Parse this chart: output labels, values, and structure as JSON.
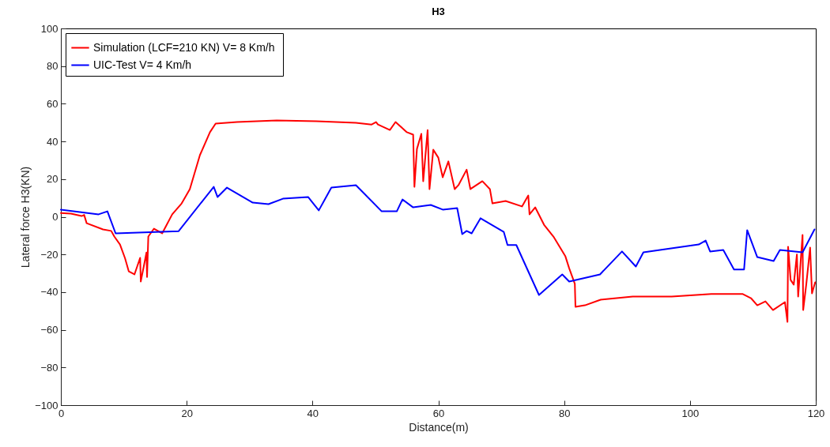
{
  "chart_data": {
    "type": "line",
    "title": "H3",
    "xlabel": "Distance(m)",
    "ylabel": "Lateral force H3(KN)",
    "xlim": [
      0,
      120
    ],
    "xticks": [
      0,
      20,
      40,
      60,
      80,
      100,
      120
    ],
    "ylim": [
      -100,
      100
    ],
    "yticks": [
      -100,
      -80,
      -60,
      -40,
      -20,
      0,
      20,
      40,
      60,
      80,
      100
    ],
    "grid": false,
    "legend": "top left",
    "line_style": "solid",
    "marker": "none",
    "series": [
      {
        "name": "Simulation (LCF=210 KN)  V= 8 Km/h",
        "color": "#ff0000",
        "x": [
          0,
          1.6,
          3.3,
          3.7,
          4.1,
          6.7,
          8,
          8.5,
          9.4,
          10.2,
          10.8,
          11.7,
          12.6,
          12.7,
          13.2,
          13.6,
          13.7,
          13.9,
          14.8,
          16.1,
          16.7,
          17.7,
          19.2,
          20.5,
          22.1,
          23.7,
          24.6,
          28,
          34.3,
          40.6,
          46.9,
          49.4,
          50.1,
          50.4,
          52.3,
          53.2,
          55,
          56,
          56.2,
          56.6,
          57.3,
          57.6,
          58.3,
          58.6,
          59.2,
          60,
          60.7,
          61.6,
          62.6,
          63.2,
          64.5,
          65.1,
          67,
          68.2,
          68.6,
          70.7,
          73.3,
          74.3,
          74.5,
          75.4,
          76.8,
          78.3,
          80.2,
          80.8,
          81.7,
          81.8,
          83.3,
          85.8,
          90.9,
          97.1,
          103.4,
          108.4,
          109.7,
          110.7,
          112,
          113.2,
          115.1,
          115.5,
          115.6,
          116,
          116.5,
          117,
          117.2,
          117.9,
          118,
          118.5,
          119.1,
          119.4,
          119.9
        ],
        "values": [
          2,
          1.7,
          0.4,
          1,
          -3.4,
          -6.7,
          -7.5,
          -10.5,
          -14.7,
          -22,
          -29,
          -30.6,
          -21.8,
          -34.4,
          -26,
          -19,
          -32,
          -10.5,
          -6.3,
          -8.8,
          -5,
          1.3,
          7.1,
          14.7,
          32.7,
          44.9,
          49.5,
          50.3,
          51.2,
          50.7,
          49.9,
          49,
          50.3,
          49,
          46.1,
          50.3,
          44.9,
          43.6,
          15.9,
          36,
          44,
          18.9,
          46,
          14.7,
          35.6,
          31.4,
          21,
          29.4,
          14.7,
          16.8,
          25,
          14.7,
          18.9,
          14.7,
          7.1,
          8.4,
          5.5,
          11.3,
          1.3,
          5,
          -4.2,
          -10.5,
          -21,
          -27.3,
          -35.6,
          -47.8,
          -47,
          -44,
          -42.3,
          -42.3,
          -41,
          -41,
          -43.2,
          -47,
          -44.9,
          -49.5,
          -45.3,
          -55.8,
          -15.9,
          -33.5,
          -36,
          -20,
          -42.3,
          -9.6,
          -49.5,
          -35.6,
          -16.4,
          -40.7,
          -34.8
        ]
      },
      {
        "name": "UIC-Test   V= 4 Km/h",
        "color": "#0000ff",
        "x": [
          0,
          6,
          7.4,
          8.7,
          18.7,
          24.3,
          24.9,
          26.4,
          30.5,
          33,
          35.3,
          39.3,
          41,
          43,
          46.9,
          51,
          53.4,
          54.3,
          56,
          58.8,
          60.7,
          63,
          63.8,
          64.5,
          65.3,
          66.7,
          70.4,
          71,
          72.4,
          76,
          79.7,
          80.8,
          85.7,
          89.2,
          91.4,
          92.6,
          101.4,
          102.5,
          103.2,
          105.3,
          107,
          108.6,
          109.1,
          110.7,
          113.3,
          114.3,
          117.9,
          119.8
        ],
        "values": [
          3.8,
          1.3,
          2.9,
          -8.8,
          -7.7,
          15.9,
          10.5,
          15.5,
          7.5,
          6.7,
          9.6,
          10.5,
          3.4,
          15.5,
          16.8,
          2.9,
          2.9,
          9.2,
          5,
          6.3,
          3.8,
          4.6,
          -9.2,
          -7.5,
          -8.8,
          -0.8,
          -8,
          -15,
          -15,
          -41.5,
          -30.6,
          -34.4,
          -30.6,
          -18.4,
          -26.4,
          -18.9,
          -14.7,
          -12.6,
          -18.4,
          -17.6,
          -28,
          -28,
          -7.1,
          -21.4,
          -23.5,
          -17.6,
          -18.9,
          -6.7
        ]
      }
    ]
  }
}
